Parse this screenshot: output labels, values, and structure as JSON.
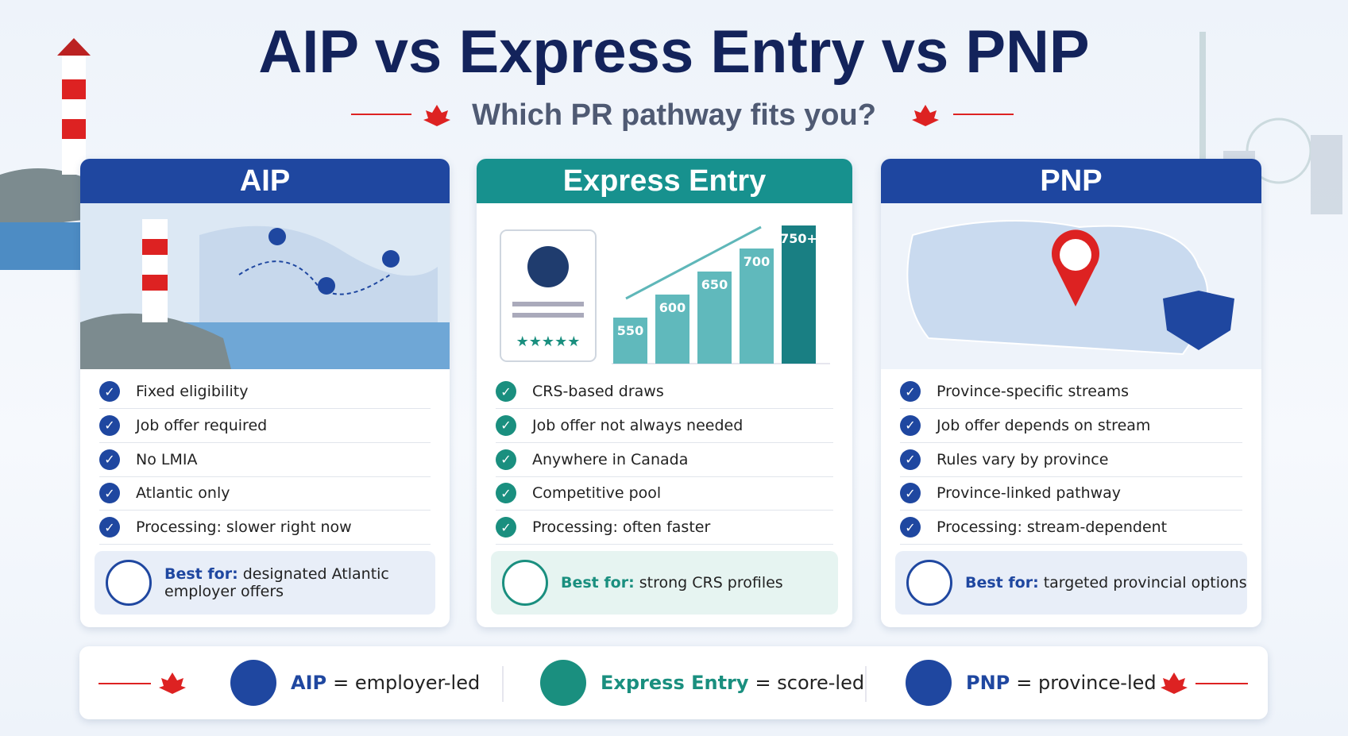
{
  "header": {
    "title": "AIP vs Express Entry vs PNP",
    "subtitle": "Which PR pathway fits you?"
  },
  "cards": [
    {
      "title": "AIP",
      "bullets": [
        "Fixed eligibility",
        "Job offer required",
        "No LMIA",
        "Atlantic only",
        "Processing: slower right now"
      ],
      "best_for": {
        "label": "Best for:",
        "text": "designated Atlantic employer offers"
      }
    },
    {
      "title": "Express Entry",
      "scores": [
        "550",
        "600",
        "650",
        "700",
        "750+"
      ],
      "bullets": [
        "CRS-based draws",
        "Job offer not always needed",
        "Anywhere in Canada",
        "Competitive pool",
        "Processing: often faster"
      ],
      "best_for": {
        "label": "Best for:",
        "text": "strong CRS profiles"
      }
    },
    {
      "title": "PNP",
      "bullets": [
        "Province-specific streams",
        "Job offer depends on stream",
        "Rules vary by province",
        "Province-linked pathway",
        "Processing: stream-dependent"
      ],
      "best_for": {
        "label": "Best for:",
        "text": "targeted provincial options"
      }
    }
  ],
  "footer": {
    "items": [
      {
        "name": "AIP",
        "desc": "= employer-led"
      },
      {
        "name": "Express Entry",
        "desc": "= score-led"
      },
      {
        "name": "PNP",
        "desc": "= province-led"
      }
    ]
  }
}
